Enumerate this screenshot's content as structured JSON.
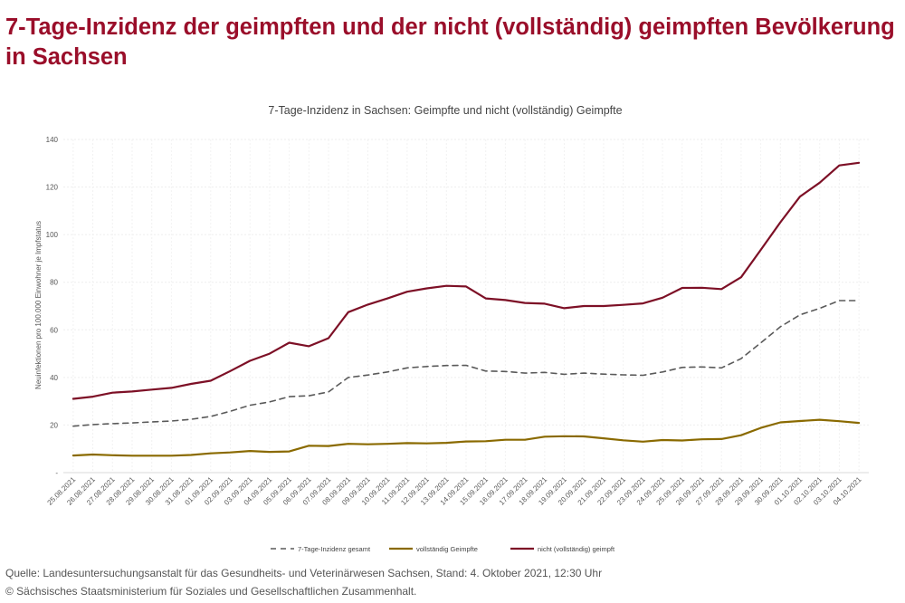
{
  "heading": "7-Tage-Inzidenz der geimpften und der nicht (vollständig) geimpften Bevölkerung in Sachsen",
  "chart_data": {
    "type": "line",
    "title": "7-Tage-Inzidenz in Sachsen: Geimpfte und nicht (vollständig) Geimpfte",
    "xlabel": "",
    "ylabel": "Neuinfektionen pro 100.000 Einwohner je Impfstatus",
    "ylim": [
      0,
      140
    ],
    "yticks": [
      0,
      20,
      40,
      60,
      80,
      100,
      120,
      140
    ],
    "ytick_labels": [
      "-",
      "20",
      "40",
      "60",
      "80",
      "100",
      "120",
      "140"
    ],
    "grid": true,
    "legend_position": "bottom",
    "categories": [
      "25.08.2021",
      "26.08.2021",
      "27.08.2021",
      "28.08.2021",
      "29.08.2021",
      "30.08.2021",
      "31.08.2021",
      "01.09.2021",
      "02.09.2021",
      "03.09.2021",
      "04.09.2021",
      "05.09.2021",
      "06.09.2021",
      "07.09.2021",
      "08.09.2021",
      "09.09.2021",
      "10.09.2021",
      "11.09.2021",
      "12.09.2021",
      "13.09.2021",
      "14.09.2021",
      "15.09.2021",
      "16.09.2021",
      "17.09.2021",
      "18.09.2021",
      "19.09.2021",
      "20.09.2021",
      "21.09.2021",
      "22.09.2021",
      "23.09.2021",
      "24.09.2021",
      "25.09.2021",
      "26.09.2021",
      "27.09.2021",
      "28.09.2021",
      "29.09.2021",
      "30.09.2021",
      "01.10.2021",
      "02.10.2021",
      "03.10.2021",
      "04.10.2021"
    ],
    "series": [
      {
        "name": "7-Tage-Inzidenz gesamt",
        "color": "#5a5a5a",
        "dash": true,
        "values": [
          19.5,
          20.2,
          20.6,
          20.9,
          21.3,
          21.7,
          22.4,
          23.6,
          25.8,
          28.3,
          29.7,
          31.9,
          32.3,
          33.9,
          40.0,
          41.0,
          42.3,
          44.0,
          44.6,
          45.0,
          45.1,
          42.7,
          42.5,
          41.8,
          42.1,
          41.3,
          41.8,
          41.4,
          41.1,
          40.9,
          42.3,
          44.2,
          44.4,
          44.0,
          47.9,
          54.5,
          61.3,
          66.3,
          69.0,
          72.3,
          72.3
        ]
      },
      {
        "name": "vollständig Geimpfte",
        "color": "#8a6a00",
        "dash": false,
        "values": [
          7.2,
          7.6,
          7.3,
          7.1,
          7.1,
          7.1,
          7.4,
          8.1,
          8.5,
          9.1,
          8.7,
          8.9,
          11.3,
          11.2,
          12.1,
          11.9,
          12.1,
          12.4,
          12.3,
          12.5,
          13.1,
          13.2,
          13.8,
          13.8,
          15.1,
          15.3,
          15.2,
          14.4,
          13.6,
          13.0,
          13.7,
          13.5,
          14.0,
          14.1,
          15.7,
          18.8,
          21.1,
          21.7,
          22.2,
          21.6,
          20.9
        ]
      },
      {
        "name": "nicht (vollständig) geimpft",
        "color": "#7d1026",
        "dash": false,
        "values": [
          31.0,
          31.9,
          33.6,
          34.1,
          34.9,
          35.6,
          37.3,
          38.6,
          42.7,
          47.0,
          50.0,
          54.6,
          53.1,
          56.5,
          67.4,
          70.6,
          73.2,
          76.0,
          77.4,
          78.5,
          78.2,
          73.2,
          72.5,
          71.3,
          71.0,
          69.1,
          70.0,
          70.0,
          70.5,
          71.1,
          73.5,
          77.6,
          77.7,
          77.1,
          82.1,
          93.6,
          105.2,
          116.0,
          121.8,
          129.1,
          130.2
        ]
      }
    ]
  },
  "footer": {
    "source": "Quelle: Landesuntersuchungsanstalt für das Gesundheits- und Veterinärwesen Sachsen, Stand: 4. Oktober 2021, 12:30 Uhr",
    "copyright": "© Sächsisches Staatsministerium für Soziales und Gesellschaftlichen Zusammenhalt."
  }
}
